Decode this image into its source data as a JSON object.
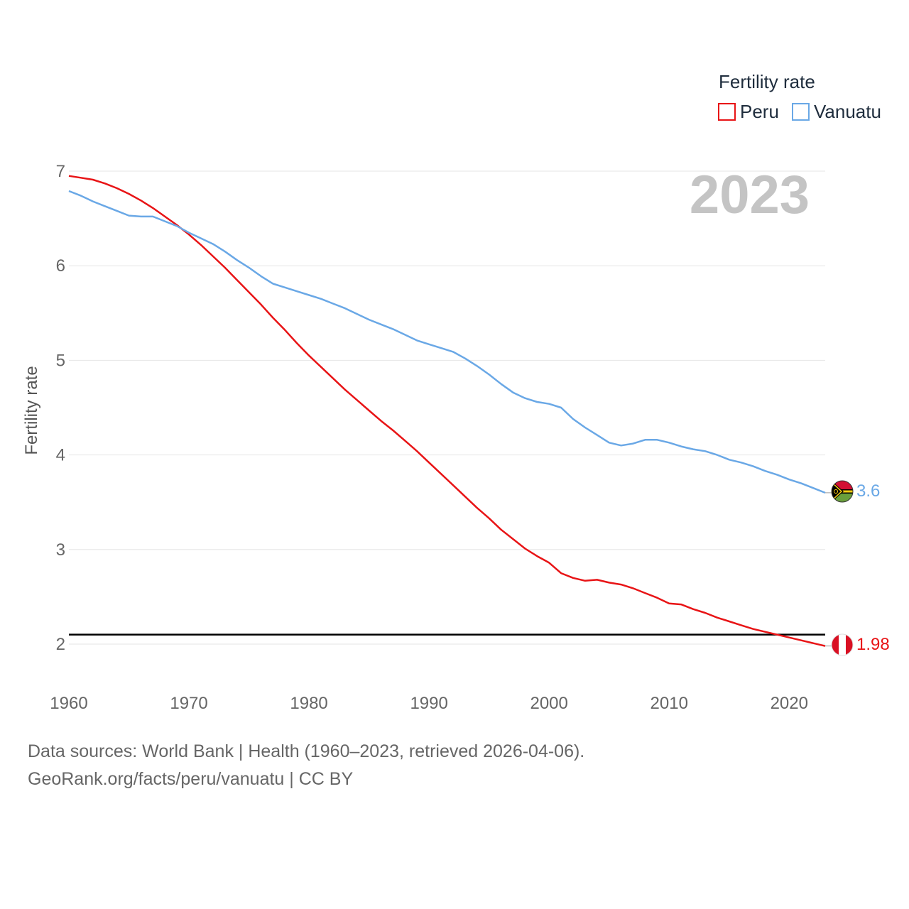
{
  "chart_data": {
    "type": "line",
    "title": "",
    "year_display": "2023",
    "xlabel": "",
    "ylabel": "Fertility rate",
    "xlim": [
      1960,
      2023
    ],
    "ylim": [
      2,
      7
    ],
    "x_ticks": [
      1960,
      1970,
      1980,
      1990,
      2000,
      2010,
      2020
    ],
    "y_ticks": [
      2,
      3,
      4,
      5,
      6,
      7
    ],
    "legend": {
      "title": "Fertility rate",
      "position": "top-right"
    },
    "reference_line": {
      "y": 2.1,
      "color": "#000000"
    },
    "x": [
      1960,
      1961,
      1962,
      1963,
      1964,
      1965,
      1966,
      1967,
      1968,
      1969,
      1970,
      1971,
      1972,
      1973,
      1974,
      1975,
      1976,
      1977,
      1978,
      1979,
      1980,
      1981,
      1982,
      1983,
      1984,
      1985,
      1986,
      1987,
      1988,
      1989,
      1990,
      1991,
      1992,
      1993,
      1994,
      1995,
      1996,
      1997,
      1998,
      1999,
      2000,
      2001,
      2002,
      2003,
      2004,
      2005,
      2006,
      2007,
      2008,
      2009,
      2010,
      2011,
      2012,
      2013,
      2014,
      2015,
      2016,
      2017,
      2018,
      2019,
      2020,
      2021,
      2022,
      2023
    ],
    "series": [
      {
        "name": "Peru",
        "color": "#e81416",
        "end_label": "1.98",
        "values": [
          6.95,
          6.93,
          6.91,
          6.87,
          6.82,
          6.76,
          6.69,
          6.61,
          6.52,
          6.43,
          6.33,
          6.22,
          6.1,
          5.98,
          5.85,
          5.72,
          5.59,
          5.45,
          5.32,
          5.18,
          5.05,
          4.93,
          4.81,
          4.69,
          4.58,
          4.47,
          4.36,
          4.26,
          4.15,
          4.04,
          3.92,
          3.8,
          3.68,
          3.56,
          3.44,
          3.33,
          3.21,
          3.11,
          3.01,
          2.93,
          2.86,
          2.75,
          2.7,
          2.67,
          2.68,
          2.65,
          2.63,
          2.59,
          2.54,
          2.49,
          2.43,
          2.42,
          2.37,
          2.33,
          2.28,
          2.24,
          2.2,
          2.16,
          2.13,
          2.1,
          2.07,
          2.04,
          2.01,
          1.98
        ]
      },
      {
        "name": "Vanuatu",
        "color": "#6aa8e6",
        "end_label": "3.6",
        "values": [
          6.79,
          6.74,
          6.68,
          6.63,
          6.58,
          6.53,
          6.52,
          6.52,
          6.47,
          6.42,
          6.35,
          6.29,
          6.23,
          6.15,
          6.06,
          5.98,
          5.89,
          5.81,
          5.77,
          5.73,
          5.69,
          5.65,
          5.6,
          5.55,
          5.49,
          5.43,
          5.38,
          5.33,
          5.27,
          5.21,
          5.17,
          5.13,
          5.09,
          5.02,
          4.94,
          4.85,
          4.75,
          4.66,
          4.6,
          4.56,
          4.54,
          4.5,
          4.38,
          4.29,
          4.21,
          4.13,
          4.1,
          4.12,
          4.16,
          4.16,
          4.13,
          4.09,
          4.06,
          4.04,
          4.0,
          3.95,
          3.92,
          3.88,
          3.83,
          3.79,
          3.74,
          3.7,
          3.65,
          3.6
        ]
      }
    ]
  },
  "footer": {
    "line1": "Data sources: World Bank | Health (1960–2023, retrieved 2026-04-06).",
    "line2": "GeoRank.org/facts/peru/vanuatu | CC BY"
  }
}
